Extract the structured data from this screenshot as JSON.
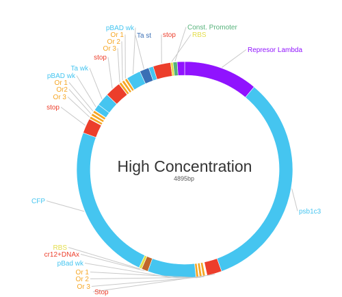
{
  "plasmid": {
    "name": "High Concentration",
    "length": "4895bp",
    "colors": {
      "blue": "#45c5f0",
      "red": "#ec3e2b",
      "orange": "#f5a623",
      "purple": "#9013fe",
      "dark_blue": "#3a6fb5",
      "green": "#55b27a",
      "yellow": "#e3dd4a",
      "brown": "#c0662b",
      "line": "#c8c8c8"
    },
    "features": [
      {
        "label": "Represor Lambda",
        "start": 0.0,
        "end": 40.0,
        "color": "purple",
        "text_color": "purple"
      },
      {
        "label": "psb1c3",
        "start": 40.0,
        "end": 160.0,
        "color": "blue",
        "text_color": "blue"
      },
      {
        "label": "Stop",
        "start": 160.0,
        "end": 168.0,
        "color": "red",
        "text_color": "red"
      },
      {
        "label": "Or 3",
        "start": 169.0,
        "end": 170.3,
        "color": "orange",
        "text_color": "orange"
      },
      {
        "label": "Or 2",
        "start": 170.8,
        "end": 172.1,
        "color": "orange",
        "text_color": "orange"
      },
      {
        "label": "Or 1",
        "start": 172.6,
        "end": 173.9,
        "color": "orange",
        "text_color": "orange"
      },
      {
        "label": "pBad wk",
        "start": 174.0,
        "end": 200.0,
        "color": "blue",
        "text_color": "blue"
      },
      {
        "label": "cr12+DNAx",
        "start": 200.0,
        "end": 203.5,
        "color": "brown",
        "text_color": "red"
      },
      {
        "label": "RBS",
        "start": 203.5,
        "end": 205.0,
        "color": "yellow",
        "text_color": "yellow"
      },
      {
        "label": "CFP",
        "start": 205.0,
        "end": 290.0,
        "color": "blue",
        "text_color": "blue"
      },
      {
        "label": "stop",
        "start": 290.0,
        "end": 298.0,
        "color": "red",
        "text_color": "red"
      },
      {
        "label": "Or 3",
        "start": 298.3,
        "end": 299.6,
        "color": "orange",
        "text_color": "orange"
      },
      {
        "label": "Or2",
        "start": 300.1,
        "end": 301.4,
        "color": "orange",
        "text_color": "orange"
      },
      {
        "label": "Or 1",
        "start": 301.9,
        "end": 303.2,
        "color": "orange",
        "text_color": "orange"
      },
      {
        "label": "pBAD wk",
        "start": 303.5,
        "end": 307.0,
        "color": "blue",
        "text_color": "blue"
      },
      {
        "label": "Ta wk",
        "start": 307.0,
        "end": 314.0,
        "color": "blue",
        "text_color": "blue"
      },
      {
        "label": "stop",
        "start": 314.0,
        "end": 322.5,
        "color": "red",
        "text_color": "red"
      },
      {
        "label": "Or 3",
        "start": 322.7,
        "end": 324.0,
        "color": "orange",
        "text_color": "orange"
      },
      {
        "label": "Or 2",
        "start": 324.5,
        "end": 325.8,
        "color": "orange",
        "text_color": "orange"
      },
      {
        "label": "Or 1",
        "start": 326.3,
        "end": 327.6,
        "color": "orange",
        "text_color": "orange"
      },
      {
        "label": "pBAD wk",
        "start": 327.8,
        "end": 335.5,
        "color": "blue",
        "text_color": "blue"
      },
      {
        "label": "Ta st",
        "start": 335.5,
        "end": 340.5,
        "color": "dark_blue",
        "text_color": "dark_blue"
      },
      {
        "label": "",
        "start": 340.5,
        "end": 343.0,
        "color": "blue",
        "text_color": "blue"
      },
      {
        "label": "stop",
        "start": 343.0,
        "end": 352.5,
        "color": "red",
        "text_color": "red"
      },
      {
        "label": "RBS",
        "start": 352.5,
        "end": 353.8,
        "color": "yellow",
        "text_color": "yellow"
      },
      {
        "label": "Const. Promoter",
        "start": 353.8,
        "end": 356.0,
        "color": "green",
        "text_color": "green"
      },
      {
        "label": "",
        "start": 356.0,
        "end": 360.0,
        "color": "purple",
        "text_color": "purple"
      }
    ]
  }
}
